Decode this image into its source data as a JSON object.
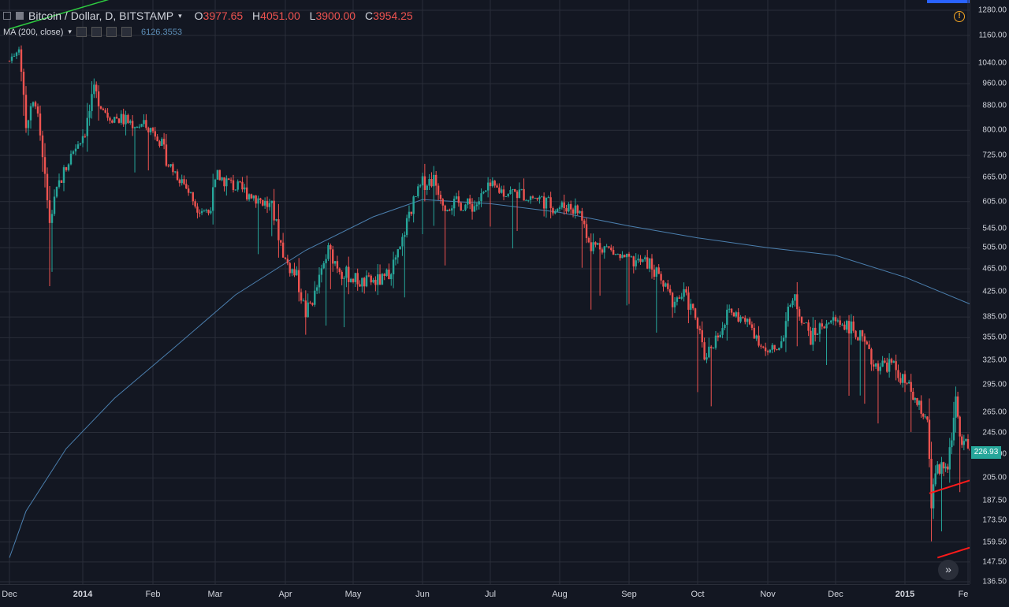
{
  "legend": {
    "symbol": "Bitcoin / Dollar, D, BITSTAMP",
    "open_label": "O",
    "open": "3977.65",
    "high_label": "H",
    "high": "4051.00",
    "low_label": "L",
    "low": "3900.00",
    "close_label": "C",
    "close": "3954.25",
    "ma_label": "MA (200, close)",
    "ma_value": "6126.3553"
  },
  "last_price": "226.93",
  "icons": {
    "warning": "warning-icon",
    "scroll": "scroll-to-realtime-icon",
    "dropdown": "caret-down-icon"
  },
  "colors": {
    "background": "#131722",
    "up": "#26a69a",
    "down": "#ef5350",
    "ma_line": "#4b7fae",
    "trendline_red": "#ff1a1a",
    "trendline_green": "#2ecc40"
  },
  "chart_data": {
    "type": "candlestick",
    "price_scale": "log",
    "ylim": [
      136.5,
      1280
    ],
    "price_ticks": [
      "1280.00",
      "1160.00",
      "1040.00",
      "960.00",
      "880.00",
      "800.00",
      "725.00",
      "665.00",
      "605.00",
      "545.00",
      "505.00",
      "465.00",
      "425.00",
      "385.00",
      "355.00",
      "325.00",
      "295.00",
      "265.00",
      "245.00",
      "225.00",
      "205.00",
      "187.50",
      "173.50",
      "159.50",
      "147.50",
      "136.50"
    ],
    "time_ticks": [
      "Dec",
      "2014",
      "Feb",
      "Mar",
      "Apr",
      "May",
      "Jun",
      "Jul",
      "Aug",
      "Sep",
      "Oct",
      "Nov",
      "Dec",
      "2015",
      "Fe"
    ],
    "close_path": [
      [
        "2013-12-01",
        1050
      ],
      [
        "2013-12-05",
        1120
      ],
      [
        "2013-12-08",
        820
      ],
      [
        "2013-12-12",
        900
      ],
      [
        "2013-12-18",
        560
      ],
      [
        "2013-12-22",
        650
      ],
      [
        "2013-12-28",
        740
      ],
      [
        "2014-01-02",
        800
      ],
      [
        "2014-01-06",
        930
      ],
      [
        "2014-01-12",
        850
      ],
      [
        "2014-01-20",
        830
      ],
      [
        "2014-01-29",
        810
      ],
      [
        "2014-02-03",
        790
      ],
      [
        "2014-02-08",
        700
      ],
      [
        "2014-02-14",
        660
      ],
      [
        "2014-02-20",
        600
      ],
      [
        "2014-02-26",
        580
      ],
      [
        "2014-03-02",
        670
      ],
      [
        "2014-03-10",
        640
      ],
      [
        "2014-03-18",
        620
      ],
      [
        "2014-03-26",
        590
      ],
      [
        "2014-04-01",
        480
      ],
      [
        "2014-04-06",
        450
      ],
      [
        "2014-04-10",
        390
      ],
      [
        "2014-04-14",
        420
      ],
      [
        "2014-04-20",
        500
      ],
      [
        "2014-04-26",
        460
      ],
      [
        "2014-05-05",
        440
      ],
      [
        "2014-05-15",
        445
      ],
      [
        "2014-05-22",
        500
      ],
      [
        "2014-05-26",
        580
      ],
      [
        "2014-06-01",
        650
      ],
      [
        "2014-06-06",
        660
      ],
      [
        "2014-06-11",
        600
      ],
      [
        "2014-06-17",
        600
      ],
      [
        "2014-06-24",
        595
      ],
      [
        "2014-07-01",
        640
      ],
      [
        "2014-07-07",
        630
      ],
      [
        "2014-07-14",
        625
      ],
      [
        "2014-07-24",
        610
      ],
      [
        "2014-07-30",
        590
      ],
      [
        "2014-08-05",
        595
      ],
      [
        "2014-08-10",
        580
      ],
      [
        "2014-08-15",
        510
      ],
      [
        "2014-08-20",
        510
      ],
      [
        "2014-08-30",
        480
      ],
      [
        "2014-09-10",
        475
      ],
      [
        "2014-09-20",
        410
      ],
      [
        "2014-09-25",
        420
      ],
      [
        "2014-09-30",
        385
      ],
      [
        "2014-10-04",
        330
      ],
      [
        "2014-10-10",
        360
      ],
      [
        "2014-10-15",
        395
      ],
      [
        "2014-10-25",
        370
      ],
      [
        "2014-11-01",
        330
      ],
      [
        "2014-11-07",
        350
      ],
      [
        "2014-11-12",
        420
      ],
      [
        "2014-11-20",
        355
      ],
      [
        "2014-11-27",
        380
      ],
      [
        "2014-12-06",
        375
      ],
      [
        "2014-12-12",
        355
      ],
      [
        "2014-12-18",
        320
      ],
      [
        "2014-12-26",
        320
      ],
      [
        "2015-01-03",
        290
      ],
      [
        "2015-01-08",
        270
      ],
      [
        "2015-01-12",
        260
      ],
      [
        "2015-01-14",
        180
      ],
      [
        "2015-01-16",
        210
      ],
      [
        "2015-01-22",
        215
      ],
      [
        "2015-01-26",
        275
      ],
      [
        "2015-01-28",
        240
      ],
      [
        "2015-02-02",
        226.93
      ]
    ],
    "ma_200": [
      [
        "2013-12-01",
        150
      ],
      [
        "2013-12-08",
        180
      ],
      [
        "2013-12-25",
        230
      ],
      [
        "2014-01-15",
        280
      ],
      [
        "2014-02-10",
        340
      ],
      [
        "2014-03-10",
        420
      ],
      [
        "2014-04-10",
        500
      ],
      [
        "2014-05-10",
        570
      ],
      [
        "2014-06-01",
        610
      ],
      [
        "2014-07-01",
        600
      ],
      [
        "2014-08-01",
        580
      ],
      [
        "2014-09-01",
        550
      ],
      [
        "2014-10-01",
        525
      ],
      [
        "2014-11-01",
        505
      ],
      [
        "2014-12-01",
        490
      ],
      [
        "2015-01-01",
        450
      ],
      [
        "2015-02-02",
        405
      ]
    ],
    "trendlines": [
      {
        "color": "red",
        "from": [
          "2015-01-13",
          193
        ],
        "to": [
          "2015-02-03",
          203
        ]
      },
      {
        "color": "red",
        "from": [
          "2015-01-17",
          150
        ],
        "to": [
          "2015-02-03",
          156
        ]
      },
      {
        "color": "green",
        "from": [
          "2013-12-01",
          1190
        ],
        "to": [
          "2014-01-25",
          1380
        ]
      }
    ]
  }
}
